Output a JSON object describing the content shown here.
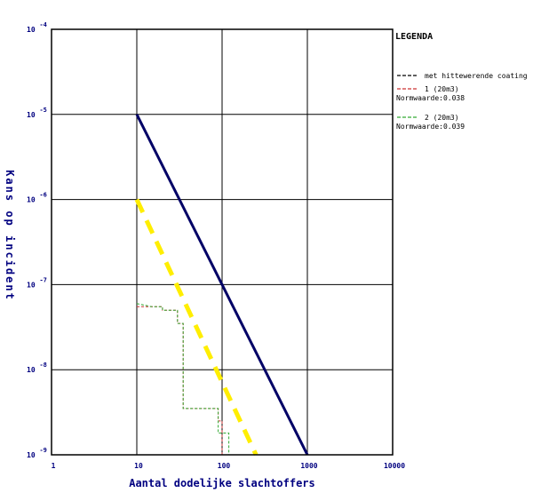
{
  "chart_data": {
    "type": "line",
    "xlabel": "Aantal dodelijke slachtoffers",
    "ylabel": "Kans op incident",
    "x_scale": "log",
    "y_scale": "log",
    "xlim": [
      1,
      10000
    ],
    "ylim": [
      1e-09,
      0.0001
    ],
    "grid": true,
    "x_ticks": [
      "1",
      "10",
      "100",
      "1000",
      "10000"
    ],
    "y_ticks": [
      {
        "base": "10",
        "exp": "-4"
      },
      {
        "base": "10",
        "exp": "-5"
      },
      {
        "base": "10",
        "exp": "-6"
      },
      {
        "base": "10",
        "exp": "-7"
      },
      {
        "base": "10",
        "exp": "-8"
      },
      {
        "base": "10",
        "exp": "-9"
      }
    ],
    "legend_title": "LEGENDA",
    "legend_position": "right",
    "legend": [
      {
        "label": "met hittewerende coating",
        "color": "#000000",
        "dash": true
      },
      {
        "label": "1 (20m3)",
        "sublabel": "Normwaarde:0.038",
        "color": "#cc3333",
        "dash": true
      },
      {
        "label": "2 (20m3)",
        "sublabel": "Normwaarde:0.039",
        "color": "#33aa33",
        "dash": true
      }
    ],
    "reference_lines": [
      {
        "color": "#000066",
        "style": "solid",
        "points": [
          [
            10,
            1e-05
          ],
          [
            1000,
            1e-09
          ]
        ]
      },
      {
        "color": "#ffee00",
        "style": "dashed",
        "points": [
          [
            10,
            1e-06
          ],
          [
            250,
            1e-09
          ]
        ]
      }
    ],
    "series": [
      {
        "color": "#cc3333",
        "points": [
          [
            10,
            5.5e-08
          ],
          [
            20,
            5.5e-08
          ],
          [
            20,
            5e-08
          ],
          [
            30,
            5e-08
          ],
          [
            30,
            3.5e-08
          ],
          [
            35,
            3.5e-08
          ],
          [
            35,
            3.5e-09
          ],
          [
            90,
            3.5e-09
          ],
          [
            90,
            2.5e-09
          ],
          [
            100,
            2.5e-09
          ],
          [
            100,
            1e-09
          ]
        ]
      },
      {
        "color": "#33aa33",
        "points": [
          [
            10,
            6e-08
          ],
          [
            15,
            5.5e-08
          ],
          [
            20,
            5.5e-08
          ],
          [
            20,
            5e-08
          ],
          [
            30,
            5e-08
          ],
          [
            30,
            3.5e-08
          ],
          [
            35,
            3.5e-08
          ],
          [
            35,
            3.5e-09
          ],
          [
            90,
            3.5e-09
          ],
          [
            90,
            1.8e-09
          ],
          [
            120,
            1.8e-09
          ],
          [
            120,
            1e-09
          ]
        ]
      }
    ]
  }
}
